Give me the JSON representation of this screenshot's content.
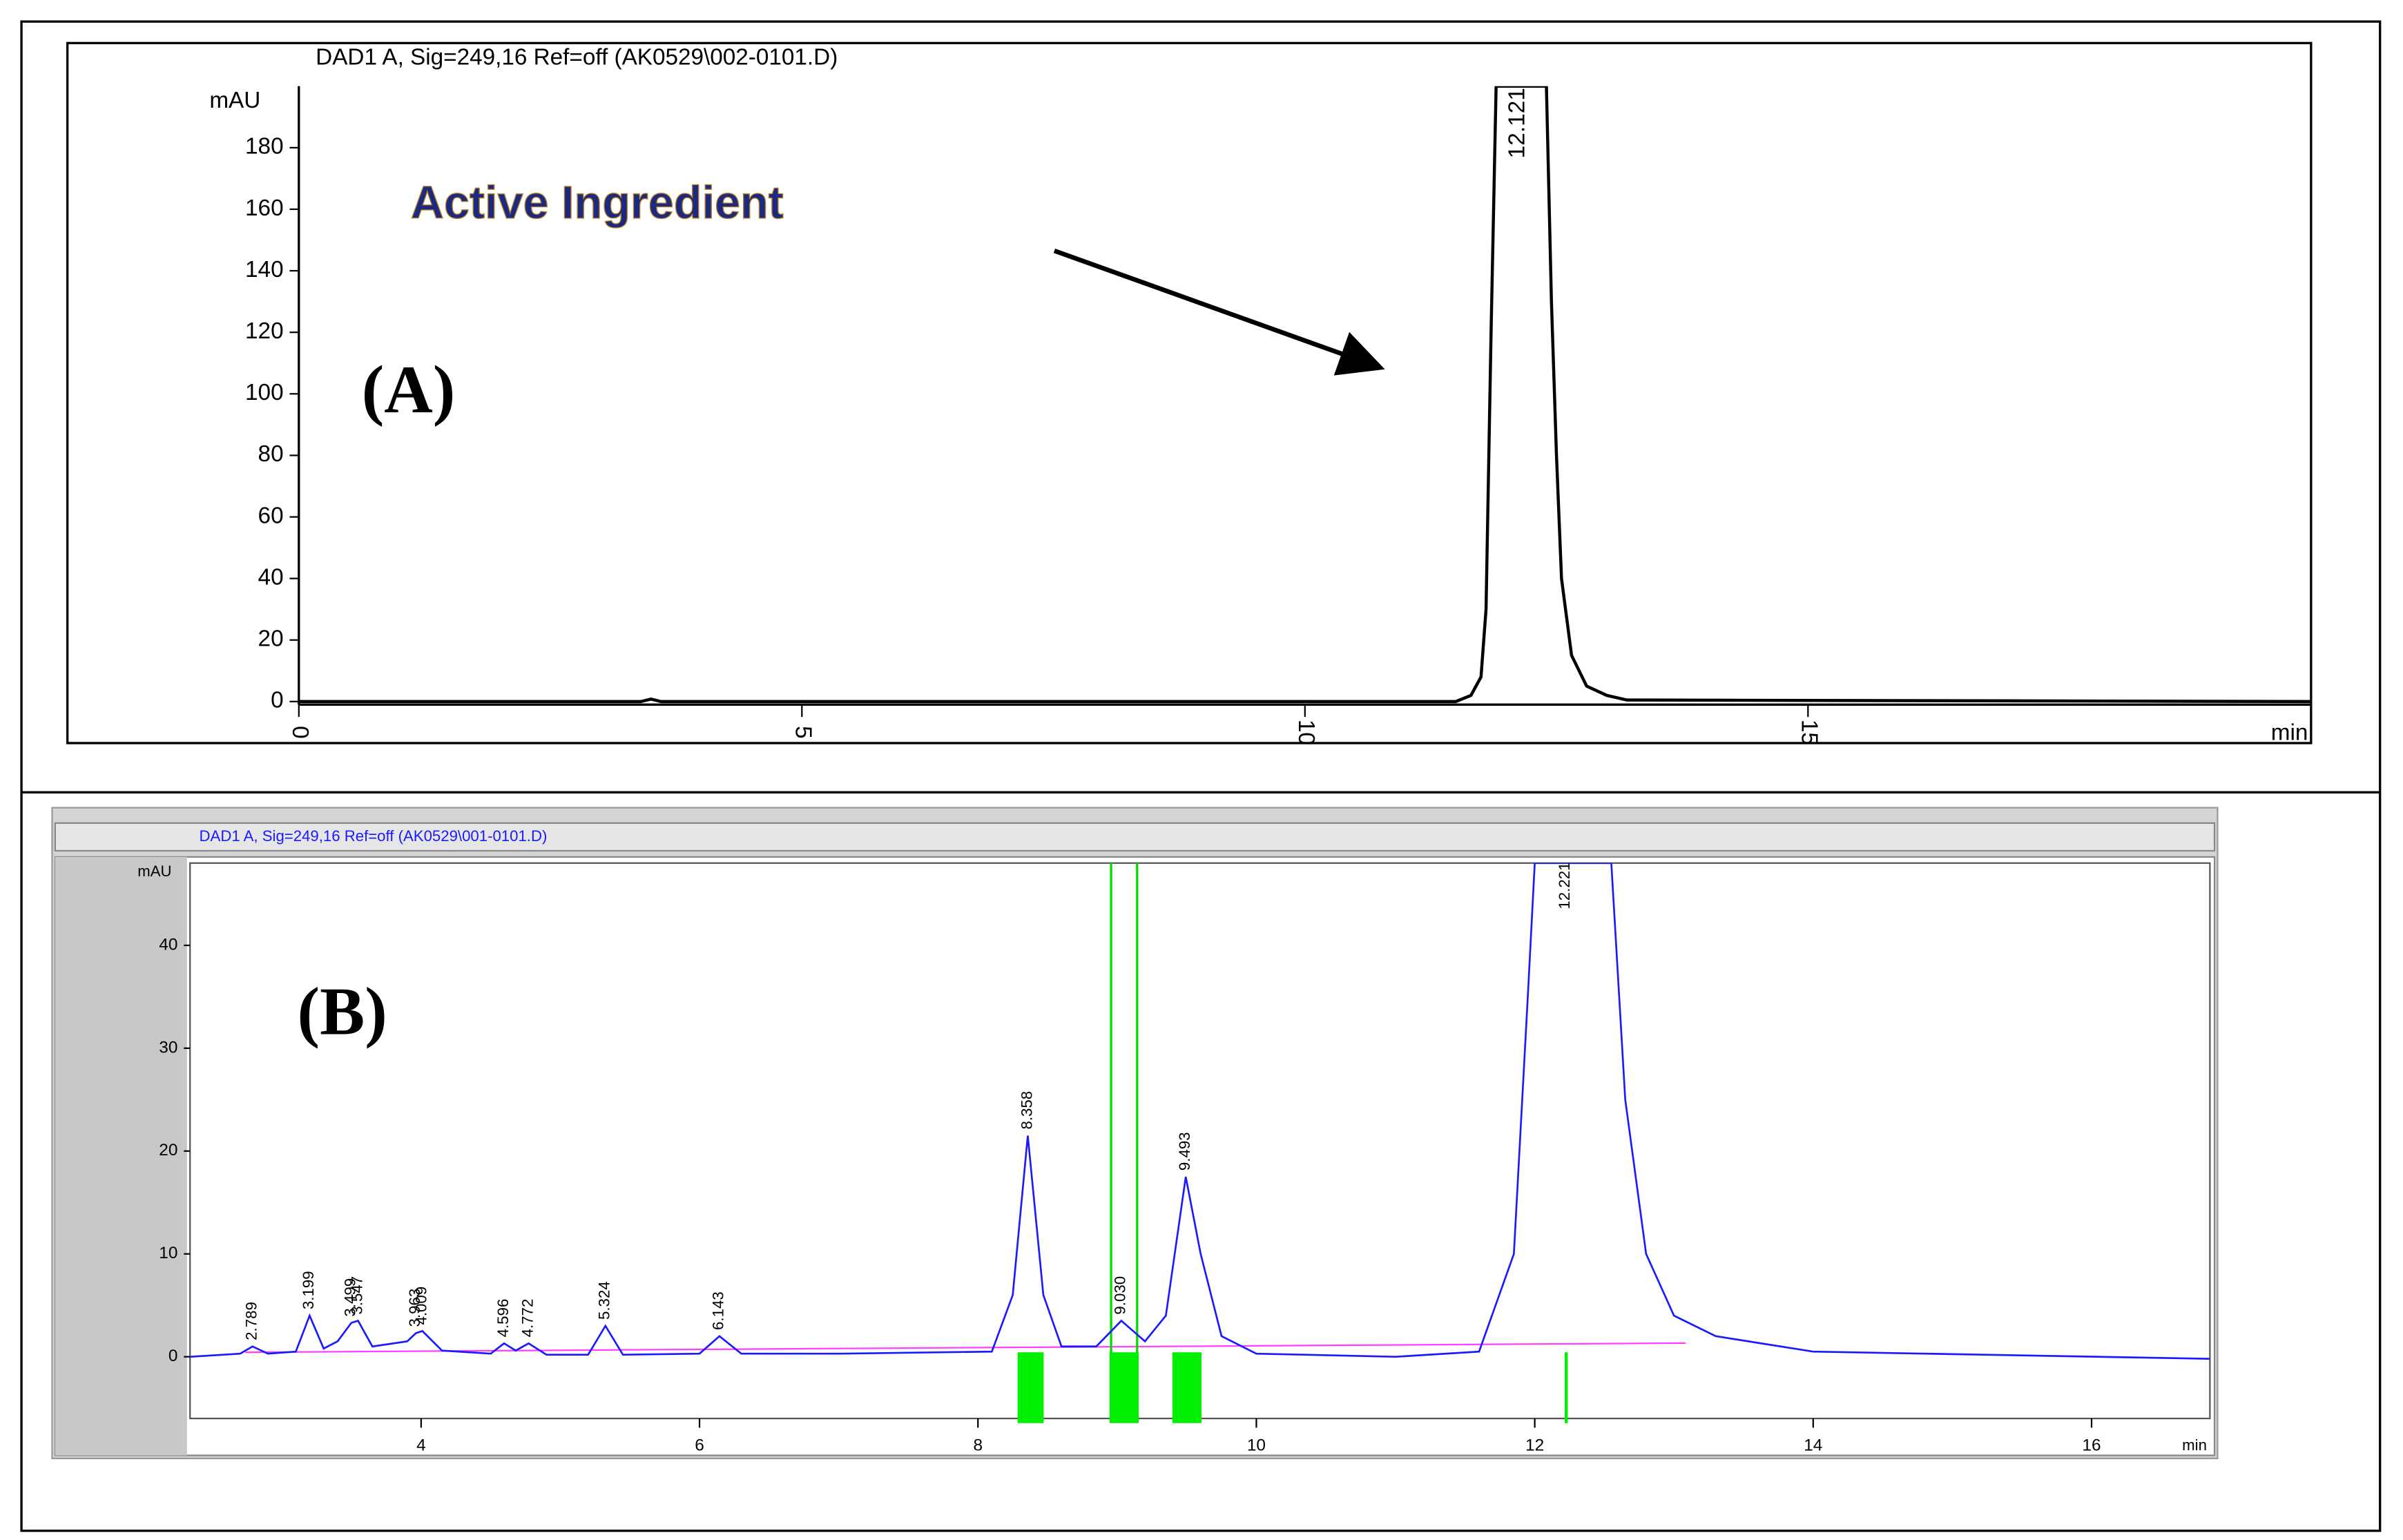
{
  "chart_data": [
    {
      "type": "line",
      "title": "DAD1 A, Sig=249,16 Ref=off (AK0529\\002-0101.D)",
      "y_label": "mAU",
      "x_label": "min",
      "annotations": [
        "Active Ingredient",
        "(A)"
      ],
      "xlim": [
        0,
        20
      ],
      "xticks": [
        0,
        5,
        10,
        15
      ],
      "ylim": [
        0,
        200
      ],
      "yticks": [
        0,
        20,
        40,
        60,
        80,
        100,
        120,
        140,
        160,
        180
      ],
      "x": [
        0,
        3.4,
        3.5,
        3.6,
        11.5,
        11.65,
        11.75,
        11.8,
        11.85,
        11.9,
        12.0,
        12.121,
        12.3,
        12.4,
        12.45,
        12.5,
        12.55,
        12.65,
        12.8,
        13.0,
        13.2,
        20
      ],
      "series": [
        {
          "name": "DAD1 A",
          "color": "#000000",
          "values": [
            0,
            0,
            0.8,
            0,
            0,
            2,
            8,
            30,
            120,
            200,
            200,
            200,
            200,
            200,
            130,
            80,
            40,
            15,
            5,
            2,
            0.5,
            0
          ]
        }
      ],
      "peaks": [
        {
          "value": 12.121,
          "label": "12.121"
        }
      ]
    },
    {
      "type": "line",
      "title": "DAD1 A, Sig=249,16 Ref=off (AK0529\\001-0101.D)",
      "y_label": "mAU",
      "x_label": "min",
      "annotations": [
        "(B)"
      ],
      "xlim": [
        2.34,
        16.85
      ],
      "xticks": [
        4,
        6,
        8,
        10,
        12,
        14,
        16
      ],
      "ylim": [
        -6,
        48
      ],
      "yticks": [
        0,
        10,
        20,
        30,
        40
      ],
      "x": [
        2.34,
        2.7,
        2.789,
        2.9,
        3.1,
        3.199,
        3.3,
        3.4,
        3.499,
        3.547,
        3.65,
        3.8,
        3.9,
        3.963,
        4.009,
        4.15,
        4.5,
        4.596,
        4.68,
        4.772,
        4.9,
        5.2,
        5.324,
        5.45,
        6.0,
        6.143,
        6.3,
        7.0,
        8.1,
        8.25,
        8.358,
        8.47,
        8.6,
        8.85,
        9.03,
        9.2,
        9.35,
        9.493,
        9.6,
        9.75,
        10.0,
        11.0,
        11.6,
        11.85,
        11.95,
        12.0,
        12.221,
        12.55,
        12.65,
        12.8,
        13.0,
        13.3,
        14.0,
        16.85
      ],
      "series": [
        {
          "name": "DAD1 A",
          "color": "#1a1aff",
          "values": [
            0,
            0.3,
            1.0,
            0.3,
            0.5,
            4.0,
            0.8,
            1.5,
            3.3,
            3.5,
            1.0,
            1.3,
            1.5,
            2.3,
            2.5,
            0.6,
            0.3,
            1.3,
            0.6,
            1.3,
            0.2,
            0.2,
            3.0,
            0.2,
            0.3,
            2.0,
            0.3,
            0.3,
            0.5,
            6,
            21.5,
            6,
            1.0,
            1.0,
            3.5,
            1.5,
            4,
            17.5,
            10,
            2,
            0.3,
            0,
            0.5,
            10,
            35,
            48,
            48,
            48,
            25,
            10,
            4,
            2,
            0.5,
            -0.2
          ]
        }
      ],
      "peaks": [
        {
          "value": 2.789,
          "label": "2.789"
        },
        {
          "value": 3.199,
          "label": "3.199"
        },
        {
          "value": 3.499,
          "label": "3.499"
        },
        {
          "value": 3.547,
          "label": "3.547"
        },
        {
          "value": 3.963,
          "label": "3.963"
        },
        {
          "value": 4.009,
          "label": "4.009"
        },
        {
          "value": 4.596,
          "label": "4.596"
        },
        {
          "value": 4.772,
          "label": "4.772"
        },
        {
          "value": 5.324,
          "label": "5.324"
        },
        {
          "value": 6.143,
          "label": "6.143"
        },
        {
          "value": 8.358,
          "label": "8.358"
        },
        {
          "value": 9.03,
          "label": "9.030"
        },
        {
          "value": 9.493,
          "label": "9.493"
        },
        {
          "value": 12.221,
          "label": "12.221"
        }
      ]
    }
  ]
}
